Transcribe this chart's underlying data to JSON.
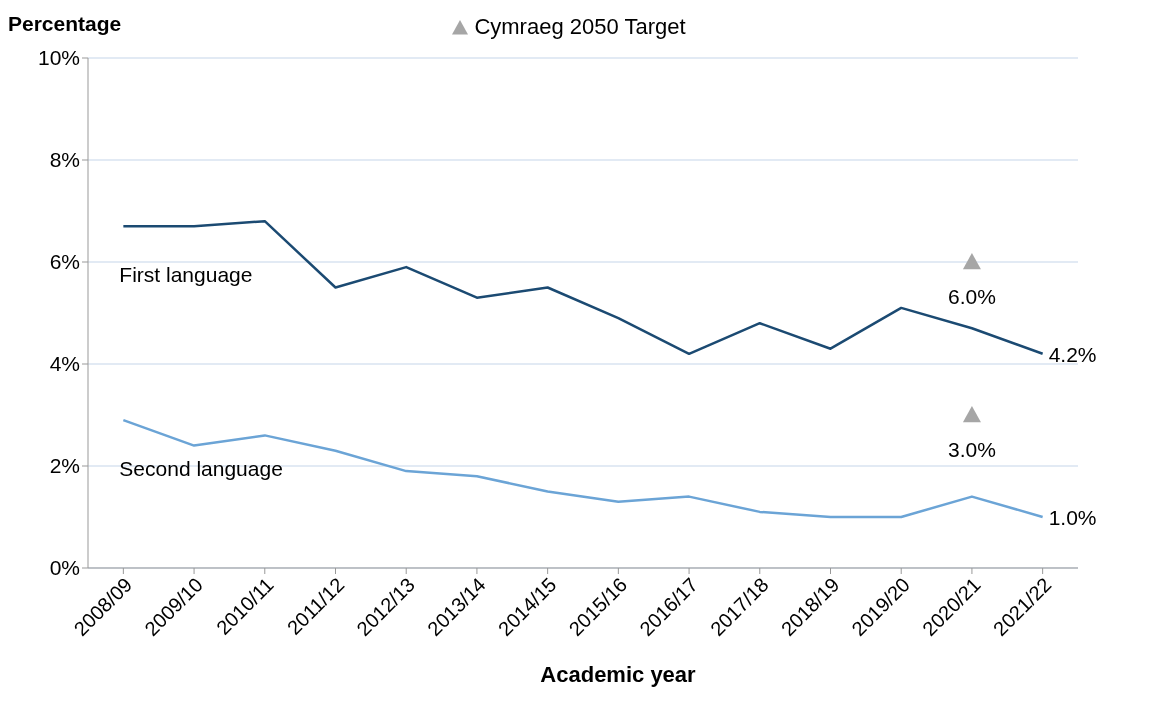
{
  "chart_data": {
    "type": "line",
    "ylabel": "Percentage",
    "xlabel": "Academic year",
    "categories": [
      "2008/09",
      "2009/10",
      "2010/11",
      "2011/12",
      "2012/13",
      "2013/14",
      "2014/15",
      "2015/16",
      "2016/17",
      "2017/18",
      "2018/19",
      "2019/20",
      "2020/21",
      "2021/22"
    ],
    "series": [
      {
        "name": "First language",
        "color": "#1b4a72",
        "values": [
          6.7,
          6.7,
          6.8,
          5.5,
          5.9,
          5.3,
          5.5,
          4.9,
          4.2,
          4.8,
          4.3,
          5.1,
          4.7,
          4.2
        ],
        "value_labels": [
          null,
          null,
          null,
          null,
          null,
          null,
          null,
          null,
          null,
          null,
          null,
          null,
          null,
          "4.2%"
        ],
        "marker": "none"
      },
      {
        "name": "Second language",
        "color": "#6ba4d6",
        "values": [
          2.9,
          2.4,
          2.6,
          2.3,
          1.9,
          1.8,
          1.5,
          1.3,
          1.4,
          1.1,
          1.0,
          1.0,
          1.4,
          1.0
        ],
        "value_labels": [
          null,
          null,
          null,
          null,
          null,
          null,
          null,
          null,
          null,
          null,
          null,
          null,
          null,
          "1.0%"
        ],
        "marker": "none"
      },
      {
        "name": "Cymraeg 2050 Target",
        "type": "scatter",
        "color": "#a6a6a6",
        "x": [
          "2020/21",
          "2020/21"
        ],
        "values": [
          6.0,
          3.0
        ],
        "value_labels": [
          "6.0%",
          "3.0%"
        ],
        "marker": "triangle"
      }
    ],
    "ylim": [
      0,
      10
    ],
    "yticks": [
      {
        "value": 0,
        "label": "0%"
      },
      {
        "value": 2,
        "label": "2%"
      },
      {
        "value": 4,
        "label": "4%"
      },
      {
        "value": 6,
        "label": "6%"
      },
      {
        "value": 8,
        "label": "8%"
      },
      {
        "value": 10,
        "label": "10%"
      }
    ],
    "grid": "y",
    "legend": "top"
  }
}
